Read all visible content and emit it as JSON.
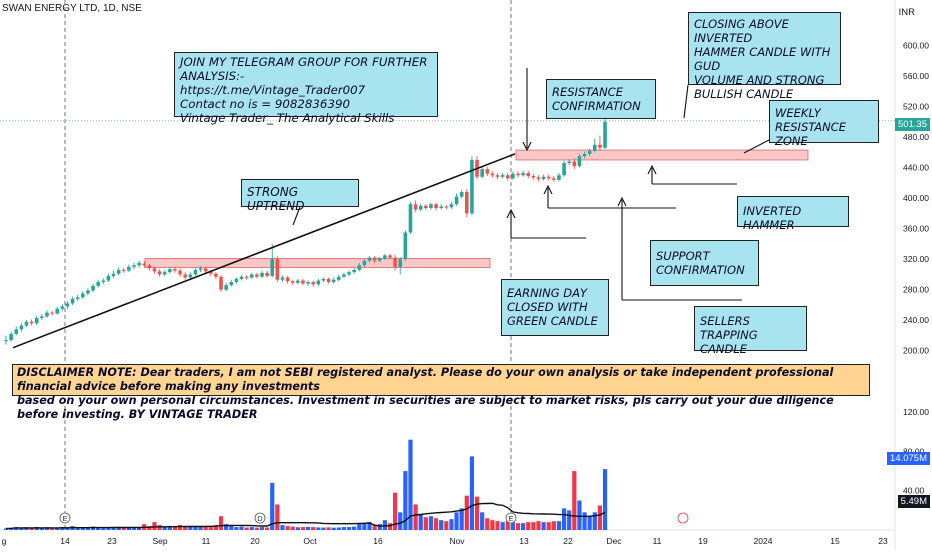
{
  "header": {
    "title": "SWAN ENERGY LTD, 1D, NSE"
  },
  "currency_label": "INR",
  "price_tag": "501.35",
  "volume_tag_1": "14.075M",
  "volume_tag_2": "5.49M",
  "event_marker_e": "E",
  "event_marker_d": "D",
  "notes": {
    "telegram": [
      "JOIN MY TELEGRAM  GROUP FOR FURTHER ANALYSIS:-",
      "https://t.me/Vintage_Trader007",
      "Contact no is = 9082836390",
      "Vintage Trader_ The Analytical Skills"
    ],
    "strong_uptrend": "STRONG UPTREND",
    "resistance_confirmation": [
      "RESISTANCE",
      "CONFIRMATION"
    ],
    "closing_above": [
      "CLOSING ABOVE INVERTED",
      "HAMMER CANDLE WITH GUD",
      "VOLUME AND STRONG",
      "BULLISH CANDLE"
    ],
    "weekly_resistance": [
      "WEEKLY RESISTANCE",
      "ZONE"
    ],
    "inverted_hammer": "INVERTED HAMMER",
    "support_confirmation": [
      "SUPPORT",
      "CONFIRMATION"
    ],
    "earning_day": [
      "EARNING DAY",
      "CLOSED WITH",
      "GREEN CANDLE"
    ],
    "sellers_trapping": [
      "SELLERS TRAPPING",
      "CANDLE"
    ],
    "disclaimer": [
      "DISCLAIMER NOTE: Dear traders, I am not SEBI registered analyst. Please do your own analysis or take independent professional financial advice before making any investments",
      " based on your own personal circumstances. Investment in securities are subject to market risks, pls carry out your due diligence before investing. BY VINTAGE TRADER"
    ]
  },
  "colors": {
    "up": "#26a69a",
    "down": "#ef5350",
    "vol_up": "#2962ff",
    "vol_down": "#f23645",
    "zone": "#f8c8c8",
    "note_bg": "#a8e4ef",
    "disclaimer_bg": "#ffd591"
  },
  "chart_data": {
    "type": "candlestick",
    "x_ticks": [
      "g",
      "14",
      "23",
      "Sep",
      "11",
      "20",
      "Oct",
      "16",
      "Nov",
      "13",
      "22",
      "Dec",
      "11",
      "19",
      "2024",
      "15",
      "23"
    ],
    "price_ticks": [
      600,
      560,
      520,
      480,
      440,
      400,
      360,
      320,
      280,
      240,
      200
    ],
    "volume_ticks": [
      120,
      80,
      40
    ],
    "price_range": [
      180,
      640
    ],
    "volume_range": [
      0,
      165
    ],
    "candles": [
      [
        213,
        214,
        208,
        220,
        1.5
      ],
      [
        214,
        222,
        212,
        225,
        2
      ],
      [
        222,
        228,
        220,
        232,
        3
      ],
      [
        228,
        233,
        225,
        236,
        2
      ],
      [
        233,
        238,
        231,
        240,
        2.5
      ],
      [
        238,
        236,
        233,
        241,
        1.5
      ],
      [
        236,
        243,
        234,
        246,
        3
      ],
      [
        243,
        245,
        240,
        248,
        2
      ],
      [
        245,
        250,
        243,
        253,
        2.5
      ],
      [
        250,
        249,
        246,
        252,
        1.6
      ],
      [
        249,
        255,
        247,
        258,
        2.2
      ],
      [
        255,
        258,
        252,
        261,
        3
      ],
      [
        258,
        262,
        255,
        265,
        2
      ],
      [
        262,
        268,
        260,
        271,
        4
      ],
      [
        268,
        270,
        265,
        273,
        2
      ],
      [
        270,
        275,
        268,
        278,
        2.3
      ],
      [
        275,
        279,
        273,
        282,
        3
      ],
      [
        279,
        285,
        277,
        288,
        3.5
      ],
      [
        285,
        290,
        283,
        293,
        3
      ],
      [
        290,
        292,
        287,
        295,
        2
      ],
      [
        292,
        298,
        290,
        301,
        2.8
      ],
      [
        298,
        301,
        295,
        305,
        3
      ],
      [
        301,
        306,
        299,
        309,
        3.2
      ],
      [
        306,
        305,
        302,
        309,
        2.4
      ],
      [
        305,
        310,
        303,
        313,
        2.6
      ],
      [
        310,
        312,
        307,
        315,
        2
      ],
      [
        312,
        315,
        309,
        318,
        2.2
      ],
      [
        314,
        312,
        309,
        317,
        6
      ],
      [
        312,
        308,
        305,
        314,
        4
      ],
      [
        308,
        304,
        301,
        310,
        8
      ],
      [
        304,
        300,
        297,
        307,
        5
      ],
      [
        300,
        303,
        298,
        306,
        3
      ],
      [
        303,
        307,
        301,
        310,
        4
      ],
      [
        307,
        305,
        302,
        310,
        3
      ],
      [
        305,
        300,
        297,
        308,
        5
      ],
      [
        300,
        296,
        293,
        303,
        4
      ],
      [
        296,
        300,
        294,
        303,
        3
      ],
      [
        300,
        306,
        298,
        308,
        4
      ],
      [
        306,
        308,
        303,
        311,
        3
      ],
      [
        308,
        304,
        301,
        310,
        4
      ],
      [
        304,
        301,
        298,
        306,
        3
      ],
      [
        301,
        297,
        294,
        303,
        5
      ],
      [
        297,
        280,
        277,
        299,
        14
      ],
      [
        280,
        286,
        278,
        289,
        6
      ],
      [
        286,
        290,
        284,
        293,
        4
      ],
      [
        290,
        294,
        288,
        296,
        3
      ],
      [
        294,
        297,
        292,
        299,
        3.5
      ],
      [
        297,
        296,
        293,
        299,
        2.5
      ],
      [
        296,
        300,
        294,
        302,
        3
      ],
      [
        300,
        297,
        295,
        302,
        2.4
      ],
      [
        297,
        302,
        295,
        305,
        3
      ],
      [
        302,
        298,
        296,
        305,
        2.6
      ],
      [
        298,
        320,
        296,
        340,
        48
      ],
      [
        320,
        293,
        290,
        324,
        26
      ],
      [
        293,
        296,
        290,
        299,
        5
      ],
      [
        296,
        291,
        288,
        298,
        4
      ],
      [
        291,
        289,
        286,
        293,
        3.5
      ],
      [
        289,
        292,
        287,
        294,
        2.8
      ],
      [
        292,
        288,
        286,
        294,
        3
      ],
      [
        288,
        290,
        285,
        292,
        3.2
      ],
      [
        290,
        287,
        284,
        292,
        3
      ],
      [
        287,
        292,
        285,
        294,
        2.6
      ],
      [
        292,
        294,
        290,
        296,
        2.5
      ],
      [
        294,
        290,
        288,
        296,
        2.7
      ],
      [
        290,
        293,
        288,
        296,
        2.4
      ],
      [
        293,
        297,
        291,
        300,
        2.6
      ],
      [
        297,
        300,
        295,
        302,
        3
      ],
      [
        300,
        303,
        298,
        305,
        3
      ],
      [
        303,
        306,
        301,
        308,
        3.5
      ],
      [
        306,
        312,
        304,
        315,
        6
      ],
      [
        312,
        318,
        310,
        320,
        7
      ],
      [
        318,
        322,
        316,
        324,
        8
      ],
      [
        322,
        318,
        315,
        324,
        5
      ],
      [
        318,
        321,
        316,
        323,
        6
      ],
      [
        321,
        325,
        319,
        327,
        10
      ],
      [
        325,
        322,
        320,
        327,
        7
      ],
      [
        322,
        310,
        305,
        326,
        38
      ],
      [
        310,
        320,
        300,
        323,
        18
      ],
      [
        320,
        355,
        318,
        358,
        60
      ],
      [
        355,
        392,
        353,
        395,
        92
      ],
      [
        392,
        385,
        382,
        397,
        26
      ],
      [
        385,
        390,
        383,
        393,
        16
      ],
      [
        390,
        387,
        384,
        392,
        13
      ],
      [
        387,
        392,
        385,
        394,
        14
      ],
      [
        392,
        387,
        384,
        394,
        12
      ],
      [
        387,
        389,
        385,
        392,
        10
      ],
      [
        389,
        388,
        385,
        391,
        9
      ],
      [
        388,
        392,
        386,
        395,
        11
      ],
      [
        392,
        402,
        390,
        406,
        18
      ],
      [
        402,
        408,
        400,
        411,
        22
      ],
      [
        408,
        380,
        375,
        412,
        35
      ],
      [
        380,
        450,
        378,
        455,
        75
      ],
      [
        450,
        428,
        425,
        455,
        34
      ],
      [
        428,
        438,
        426,
        441,
        18
      ],
      [
        438,
        432,
        429,
        441,
        12
      ],
      [
        432,
        430,
        427,
        435,
        10
      ],
      [
        430,
        428,
        425,
        433,
        9
      ],
      [
        428,
        430,
        426,
        433,
        8
      ],
      [
        430,
        426,
        423,
        433,
        9
      ],
      [
        426,
        432,
        424,
        435,
        8
      ],
      [
        432,
        430,
        427,
        435,
        7
      ],
      [
        430,
        433,
        428,
        436,
        7
      ],
      [
        433,
        429,
        426,
        436,
        8
      ],
      [
        429,
        427,
        424,
        432,
        8
      ],
      [
        427,
        425,
        422,
        430,
        9
      ],
      [
        425,
        428,
        423,
        431,
        8
      ],
      [
        428,
        426,
        423,
        431
      ],
      [
        426,
        424,
        421,
        429,
        9
      ],
      [
        424,
        430,
        422,
        433,
        9
      ],
      [
        430,
        446,
        428,
        449,
        22
      ],
      [
        446,
        448,
        443,
        451,
        20
      ],
      [
        448,
        442,
        438,
        452,
        60
      ],
      [
        442,
        455,
        440,
        458,
        30
      ],
      [
        455,
        458,
        452,
        461,
        18
      ],
      [
        458,
        462,
        455,
        465,
        14
      ],
      [
        462,
        470,
        460,
        478,
        18
      ],
      [
        470,
        466,
        462,
        482,
        25
      ],
      [
        466,
        500,
        464,
        504,
        62
      ]
    ]
  }
}
